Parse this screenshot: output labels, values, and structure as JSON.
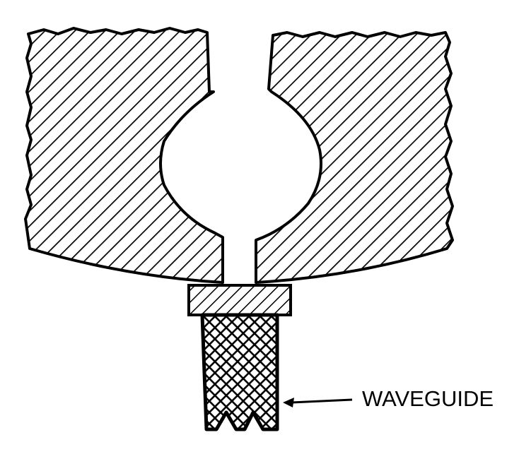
{
  "diagram": {
    "callout": {
      "label": "WAVEGUIDE"
    },
    "colors": {
      "ink": "#000000",
      "paper": "#ffffff"
    },
    "hatching": {
      "body": "diagonal-lines",
      "transition_block": "diagonal-lines",
      "waveguide": "cross-hatch"
    }
  }
}
